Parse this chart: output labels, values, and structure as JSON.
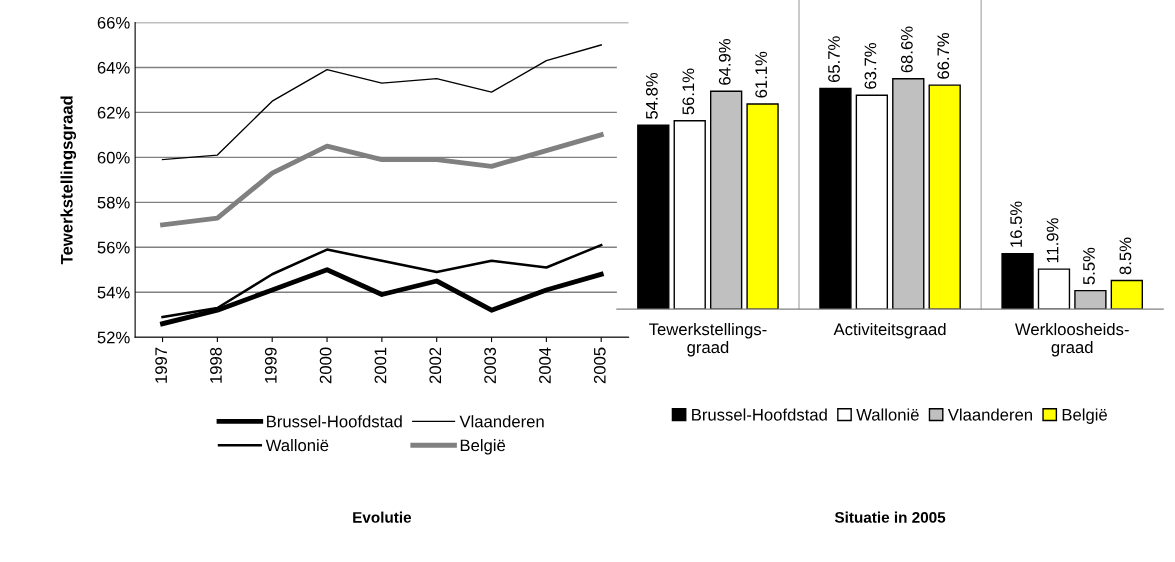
{
  "chart_data": [
    {
      "type": "line",
      "title": "Evolutie",
      "ylabel": "Tewerkstellingsgraad",
      "categories": [
        "1997",
        "1998",
        "1999",
        "2000",
        "2001",
        "2002",
        "2003",
        "2004",
        "2005"
      ],
      "series": [
        {
          "name": "Brussel-Hoofdstad",
          "color": "#000000",
          "values": [
            52.6,
            53.2,
            54.1,
            55.0,
            53.9,
            54.5,
            53.2,
            54.1,
            54.8
          ]
        },
        {
          "name": "Wallonië",
          "color": "#000000",
          "values": [
            52.9,
            53.3,
            54.8,
            55.9,
            55.4,
            54.9,
            55.4,
            55.1,
            56.1
          ]
        },
        {
          "name": "Vlaanderen",
          "color": "#000000",
          "values": [
            59.9,
            60.1,
            62.5,
            63.9,
            63.3,
            63.5,
            62.9,
            64.3,
            65.0
          ]
        },
        {
          "name": "België",
          "color": "#808080",
          "values": [
            57.0,
            57.3,
            59.3,
            60.5,
            59.9,
            59.9,
            59.6,
            60.3,
            61.0
          ]
        }
      ],
      "ylim": [
        52,
        66
      ],
      "yticks": [
        {
          "value": 52,
          "label": "52%"
        },
        {
          "value": 54,
          "label": "54%"
        },
        {
          "value": 56,
          "label": "56%"
        },
        {
          "value": 58,
          "label": "58%"
        },
        {
          "value": 60,
          "label": "60%"
        },
        {
          "value": 62,
          "label": "62%"
        },
        {
          "value": 64,
          "label": "64%"
        },
        {
          "value": 66,
          "label": "66%"
        }
      ],
      "grid": "y",
      "legend": "bottom",
      "marker": "none",
      "line_style": "solid"
    },
    {
      "type": "bar",
      "title": "Situatie in 2005",
      "categories": [
        "Tewerkstellings-\ngraad",
        "Activiteitsgraad",
        "Werkloosheids-\ngraad"
      ],
      "series": [
        {
          "name": "Brussel-Hoofdstad",
          "color": "#000000",
          "values": [
            54.8,
            65.7,
            16.5
          ],
          "value_labels": [
            "54.8%",
            "65.7%",
            "16.5%"
          ]
        },
        {
          "name": "Wallonië",
          "color": "#ffffff",
          "values": [
            56.1,
            63.7,
            11.9
          ],
          "value_labels": [
            "56.1%",
            "63.7%",
            "11.9%"
          ]
        },
        {
          "name": "Vlaanderen",
          "color": "#c0c0c0",
          "values": [
            64.9,
            68.6,
            5.5
          ],
          "value_labels": [
            "64.9%",
            "68.6%",
            "5.5%"
          ]
        },
        {
          "name": "België",
          "color": "#ffff00",
          "values": [
            61.1,
            66.7,
            8.5
          ],
          "value_labels": [
            "61.1%",
            "66.7%",
            "8.5%"
          ]
        }
      ],
      "tick_labels": "x",
      "grid": false,
      "legend": "bottom"
    }
  ]
}
